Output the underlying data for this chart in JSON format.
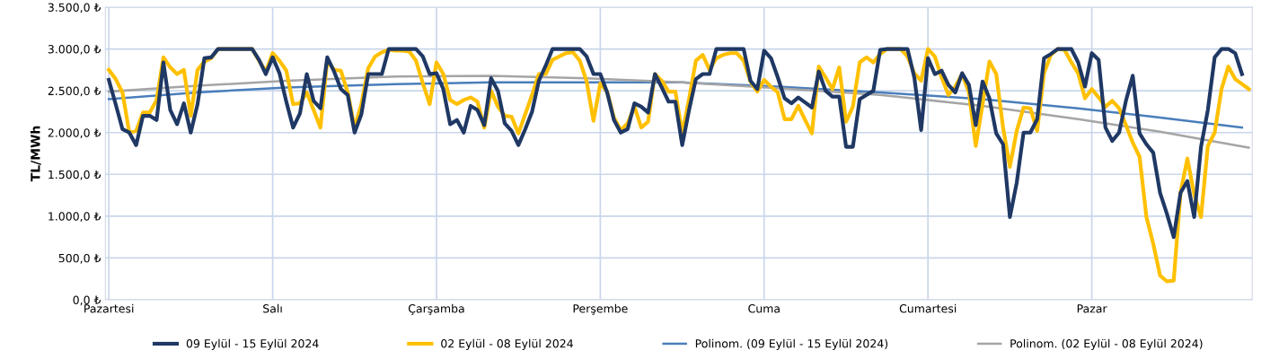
{
  "chart_data": {
    "type": "line",
    "ylabel": "TL/MWh",
    "categories": [
      "Pazartesi",
      null,
      null,
      null,
      null,
      null,
      null,
      null,
      null,
      null,
      null,
      null,
      null,
      null,
      null,
      null,
      null,
      null,
      null,
      null,
      null,
      null,
      null,
      null,
      "Salı",
      null,
      null,
      null,
      null,
      null,
      null,
      null,
      null,
      null,
      null,
      null,
      null,
      null,
      null,
      null,
      null,
      null,
      null,
      null,
      null,
      null,
      null,
      null,
      "Çarşamba",
      null,
      null,
      null,
      null,
      null,
      null,
      null,
      null,
      null,
      null,
      null,
      null,
      null,
      null,
      null,
      null,
      null,
      null,
      null,
      null,
      null,
      null,
      null,
      "Perşembe",
      null,
      null,
      null,
      null,
      null,
      null,
      null,
      null,
      null,
      null,
      null,
      null,
      null,
      null,
      null,
      null,
      null,
      null,
      null,
      null,
      null,
      null,
      null,
      "Cuma",
      null,
      null,
      null,
      null,
      null,
      null,
      null,
      null,
      null,
      null,
      null,
      null,
      null,
      null,
      null,
      null,
      null,
      null,
      null,
      null,
      null,
      null,
      null,
      "Cumartesi",
      null,
      null,
      null,
      null,
      null,
      null,
      null,
      null,
      null,
      null,
      null,
      null,
      null,
      null,
      null,
      null,
      null,
      null,
      null,
      null,
      null,
      null,
      null,
      "Pazar",
      null,
      null,
      null,
      null,
      null,
      null,
      null,
      null,
      null,
      null,
      null,
      null,
      null,
      null,
      null,
      null,
      null,
      null,
      null,
      null,
      null,
      null,
      null
    ],
    "ylim": [
      0,
      3500
    ],
    "yticks": [
      {
        "value": 0,
        "label": "0,0 ₺"
      },
      {
        "value": 500,
        "label": "500,0 ₺"
      },
      {
        "value": 1000,
        "label": "1.000,0 ₺"
      },
      {
        "value": 1500,
        "label": "1.500,0 ₺"
      },
      {
        "value": 2000,
        "label": "2.000,0 ₺"
      },
      {
        "value": 2500,
        "label": "2.500,0 ₺"
      },
      {
        "value": 3000,
        "label": "3.000,0 ₺"
      },
      {
        "value": 3500,
        "label": "3.500,0 ₺"
      }
    ],
    "grid": true,
    "legend": "bottom",
    "marker": "none",
    "series": [
      {
        "name": "09 Eylül - 15 Eylül 2024",
        "color": "#1f3864",
        "values": [
          2630,
          2340,
          2040,
          2000,
          1850,
          2200,
          2200,
          2150,
          2840,
          2270,
          2100,
          2350,
          2000,
          2340,
          2890,
          2900,
          3000,
          3000,
          3000,
          3000,
          3000,
          3000,
          2870,
          2700,
          2900,
          2710,
          2370,
          2060,
          2230,
          2700,
          2380,
          2290,
          2900,
          2730,
          2520,
          2450,
          2000,
          2220,
          2700,
          2700,
          2700,
          3000,
          3000,
          3000,
          3000,
          3000,
          2910,
          2700,
          2710,
          2520,
          2100,
          2150,
          2000,
          2320,
          2270,
          2090,
          2650,
          2500,
          2110,
          2020,
          1850,
          2040,
          2250,
          2620,
          2800,
          3000,
          3000,
          3000,
          3000,
          3000,
          2910,
          2700,
          2700,
          2480,
          2150,
          2000,
          2040,
          2350,
          2310,
          2240,
          2700,
          2540,
          2370,
          2370,
          1850,
          2270,
          2640,
          2700,
          2700,
          3000,
          3000,
          3000,
          3000,
          3000,
          2620,
          2520,
          2980,
          2890,
          2660,
          2410,
          2350,
          2420,
          2360,
          2300,
          2730,
          2500,
          2430,
          2430,
          1830,
          1830,
          2400,
          2450,
          2500,
          2990,
          3000,
          3000,
          3000,
          3000,
          2660,
          2030,
          2890,
          2700,
          2740,
          2570,
          2480,
          2710,
          2570,
          2090,
          2610,
          2410,
          1990,
          1860,
          990,
          1400,
          2000,
          2000,
          2160,
          2890,
          2940,
          3000,
          3000,
          3000,
          2840,
          2550,
          2950,
          2870,
          2060,
          1900,
          2000,
          2380,
          2680,
          1990,
          1860,
          1760,
          1280,
          1030,
          750,
          1280,
          1420,
          990,
          1830,
          2270,
          2900,
          3000,
          3000,
          2950,
          2700,
          null
        ]
      },
      {
        "name": "02 Eylül - 08 Eylül 2024",
        "color": "#ffc000",
        "values": [
          2750,
          2640,
          2480,
          2000,
          2020,
          2240,
          2240,
          2390,
          2900,
          2780,
          2700,
          2750,
          2200,
          2750,
          2850,
          2890,
          3000,
          3000,
          3000,
          3000,
          3000,
          3000,
          2860,
          2730,
          2950,
          2860,
          2740,
          2340,
          2350,
          2480,
          2270,
          2060,
          2860,
          2750,
          2740,
          2480,
          2060,
          2340,
          2770,
          2910,
          2960,
          2990,
          2980,
          2980,
          2970,
          2860,
          2590,
          2340,
          2840,
          2700,
          2390,
          2340,
          2390,
          2420,
          2370,
          2060,
          2500,
          2310,
          2200,
          2190,
          1990,
          2220,
          2450,
          2700,
          2700,
          2870,
          2910,
          2950,
          2960,
          2860,
          2610,
          2140,
          2590,
          2490,
          2180,
          2030,
          2110,
          2310,
          2060,
          2130,
          2700,
          2620,
          2490,
          2490,
          1990,
          2400,
          2860,
          2930,
          2750,
          2890,
          2930,
          2950,
          2950,
          2860,
          2610,
          2490,
          2630,
          2550,
          2480,
          2160,
          2160,
          2320,
          2150,
          1990,
          2790,
          2660,
          2520,
          2780,
          2130,
          2310,
          2840,
          2900,
          2840,
          2940,
          3000,
          3000,
          3000,
          2910,
          2710,
          2620,
          3000,
          2910,
          2660,
          2450,
          2550,
          2700,
          2480,
          1840,
          2340,
          2850,
          2700,
          2060,
          1590,
          2020,
          2300,
          2290,
          2020,
          2710,
          2930,
          3000,
          2990,
          2840,
          2710,
          2410,
          2520,
          2420,
          2310,
          2380,
          2290,
          2090,
          1880,
          1710,
          990,
          670,
          290,
          220,
          230,
          1280,
          1690,
          1260,
          990,
          1840,
          2000,
          2520,
          2790,
          2640,
          2580,
          2520
        ]
      },
      {
        "name": "Polinom. (09 Eylül - 15 Eylül 2024)",
        "color": "#4a7ebb",
        "values": [
          2400,
          null,
          null,
          null,
          null,
          null,
          null,
          null,
          null,
          null,
          null,
          null,
          null,
          2480,
          null,
          null,
          null,
          null,
          null,
          null,
          null,
          null,
          null,
          null,
          null,
          null,
          2540,
          null,
          null,
          null,
          null,
          null,
          null,
          null,
          null,
          null,
          null,
          null,
          null,
          null,
          null,
          null,
          2580,
          null,
          null,
          null,
          null,
          null,
          null,
          null,
          null,
          null,
          null,
          null,
          null,
          null,
          2600,
          null,
          null,
          null,
          null,
          null,
          null,
          null,
          null,
          null,
          null,
          null,
          null,
          null,
          2600,
          null,
          null,
          null,
          null,
          null,
          null,
          null,
          null,
          null,
          null,
          null,
          null,
          null,
          2600,
          null,
          null,
          null,
          null,
          null,
          null,
          null,
          null,
          null,
          null,
          null,
          null,
          null,
          2550,
          null,
          null,
          null,
          null,
          null,
          null,
          null,
          null,
          null,
          null,
          null,
          null,
          null,
          null,
          2480,
          null,
          null,
          null,
          null,
          null,
          null,
          null,
          null,
          null,
          null,
          null,
          null,
          null,
          null,
          2400,
          null,
          null,
          null,
          null,
          null,
          null,
          null,
          null,
          null,
          null,
          null,
          null,
          null,
          2290,
          null,
          null,
          null,
          null,
          null,
          null,
          null,
          null,
          null,
          null,
          null,
          2180,
          null,
          null,
          null,
          null,
          null,
          null,
          null,
          null,
          null,
          null,
          null,
          2060,
          null
        ]
      },
      {
        "name": "Polinom. (02 Eylül - 08 Eylül 2024)",
        "color": "#a5a5a5",
        "values": [
          2490,
          null,
          null,
          null,
          null,
          null,
          null,
          null,
          null,
          null,
          null,
          null,
          null,
          2560,
          null,
          null,
          null,
          null,
          null,
          null,
          null,
          null,
          null,
          null,
          null,
          null,
          2620,
          null,
          null,
          null,
          null,
          null,
          null,
          null,
          null,
          null,
          null,
          null,
          null,
          null,
          null,
          null,
          2670,
          null,
          null,
          null,
          null,
          null,
          null,
          null,
          null,
          null,
          null,
          null,
          null,
          null,
          2680,
          null,
          null,
          null,
          null,
          null,
          null,
          null,
          null,
          null,
          null,
          null,
          null,
          null,
          2650,
          null,
          null,
          null,
          null,
          null,
          null,
          null,
          null,
          null,
          null,
          null,
          null,
          null,
          2600,
          null,
          null,
          null,
          null,
          null,
          null,
          null,
          null,
          null,
          null,
          null,
          null,
          null,
          2530,
          null,
          null,
          null,
          null,
          null,
          null,
          null,
          null,
          null,
          null,
          null,
          null,
          null,
          null,
          2450,
          null,
          null,
          null,
          null,
          null,
          null,
          null,
          null,
          null,
          null,
          null,
          null,
          null,
          null,
          2320,
          null,
          null,
          null,
          null,
          null,
          null,
          null,
          null,
          null,
          null,
          null,
          null,
          null,
          2160,
          null,
          null,
          null,
          null,
          null,
          null,
          null,
          null,
          null,
          null,
          null,
          2010,
          null,
          null,
          null,
          null,
          null,
          null,
          null,
          null,
          null,
          null,
          null,
          null,
          1820
        ]
      }
    ]
  }
}
